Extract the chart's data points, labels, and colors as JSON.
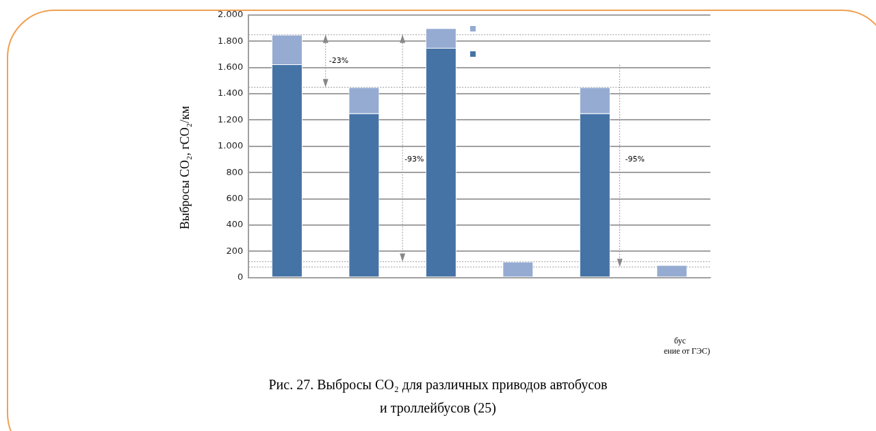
{
  "chart_data": {
    "type": "bar",
    "title": "Рис. 27. Выбросы CO₂ для различных приводов автобусов и троллейбусов (25)",
    "ylabel": "Выбросы CO₂, гCO₂/км",
    "categories": [
      null,
      null,
      null,
      null,
      null,
      null
    ],
    "stacked": true,
    "series": [
      {
        "color": "#4673a6",
        "values": [
          1625,
          1250,
          1750,
          0,
          1250,
          0
        ]
      },
      {
        "color": "#95abd2",
        "values": [
          225,
          200,
          150,
          120,
          200,
          95
        ]
      }
    ],
    "ylim": [
      0,
      2000
    ],
    "yticks": [
      {
        "value": 0,
        "label": "0"
      },
      {
        "value": 200,
        "label": "200"
      },
      {
        "value": 400,
        "label": "400"
      },
      {
        "value": 600,
        "label": "600"
      },
      {
        "value": 800,
        "label": "800"
      },
      {
        "value": 1000,
        "label": "1.000"
      },
      {
        "value": 1200,
        "label": "1.200"
      },
      {
        "value": 1400,
        "label": "1.400"
      },
      {
        "value": 1600,
        "label": "1.600"
      },
      {
        "value": 1800,
        "label": "1.800"
      },
      {
        "value": 2000,
        "label": "2.000"
      }
    ],
    "grid": "y",
    "ref_lines": [
      {
        "axis": "y",
        "value": 1850,
        "line_style": "dotted",
        "color": "#999999"
      },
      {
        "axis": "y",
        "value": 1450,
        "line_style": "dotted",
        "color": "#999999"
      },
      {
        "axis": "y",
        "value": 120,
        "line_style": "dotted",
        "color": "#999999"
      },
      {
        "axis": "y",
        "value": 80,
        "line_style": "dotted",
        "color": "#999999"
      }
    ],
    "annotations": [
      "-23%",
      "-93%",
      "-95%",
      "бус",
      "ение от ГЭС)"
    ]
  }
}
